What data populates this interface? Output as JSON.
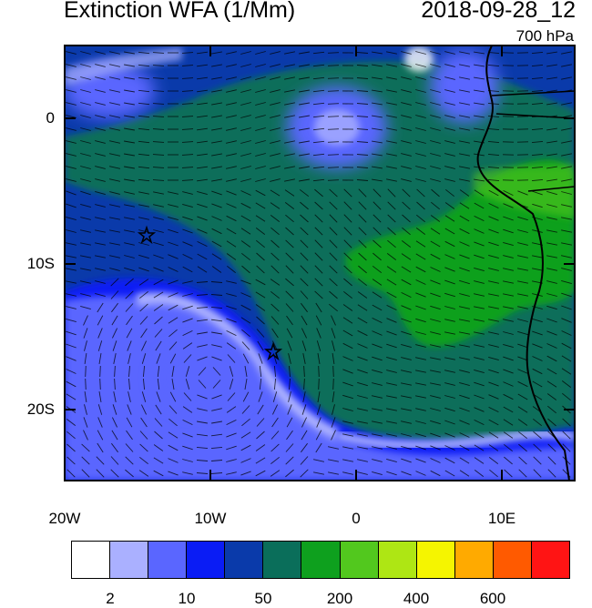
{
  "title": "Extinction WFA (1/Mm)",
  "datetime": "2018-09-28_12",
  "level": "700 hPa",
  "lat_labels": [
    "0",
    "10S",
    "20S"
  ],
  "lon_labels": [
    "20W",
    "10W",
    "0",
    "10E"
  ],
  "colorbar": {
    "colors": [
      "#ffffff",
      "#aab0ff",
      "#5a66ff",
      "#0a1cf5",
      "#0a3aaa",
      "#0a6e5a",
      "#0ea01e",
      "#52c81e",
      "#aee614",
      "#f5f500",
      "#ffaa00",
      "#ff5a00",
      "#ff1414"
    ],
    "labels": [
      "2",
      "10",
      "50",
      "200",
      "400",
      "600"
    ]
  },
  "markers": [
    "star",
    "star"
  ]
}
